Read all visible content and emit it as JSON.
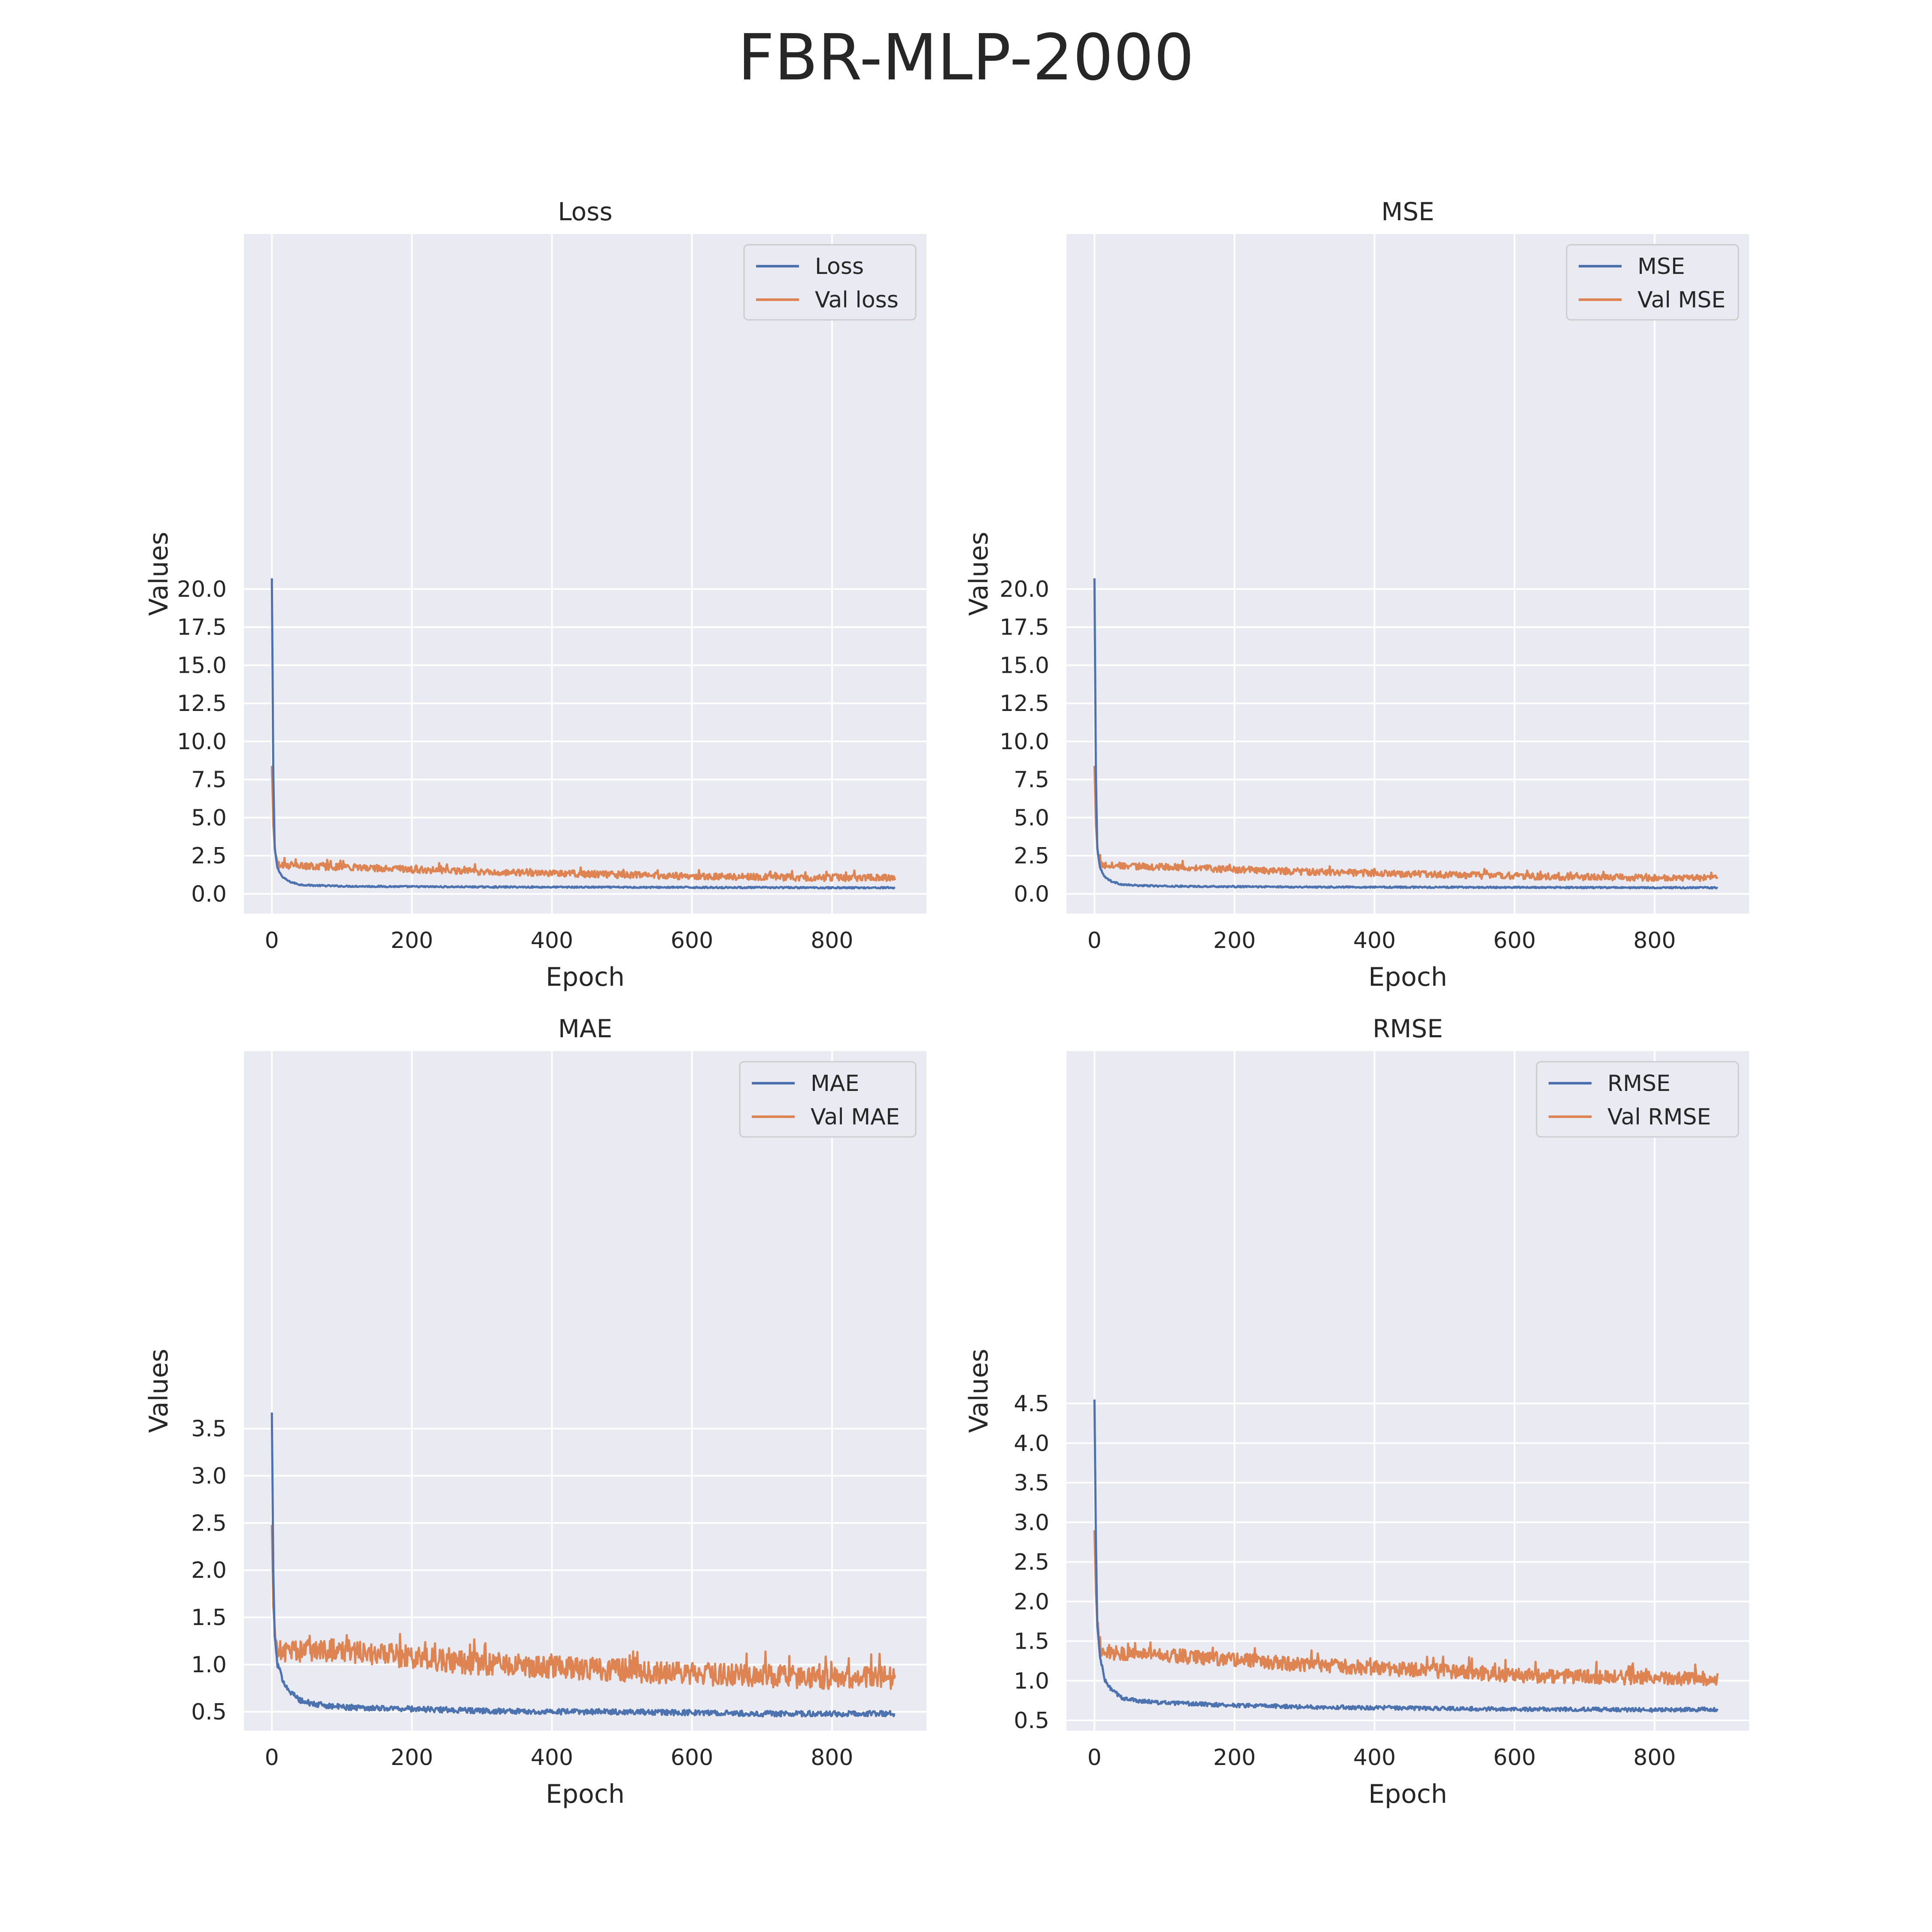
{
  "figure": {
    "title": "FBR-MLP-2000",
    "colors": {
      "train": "#4c72b0",
      "val": "#dd8452",
      "panel_bg": "#eaeaf2",
      "grid": "#ffffff",
      "text": "#262626"
    }
  },
  "chart_data": [
    {
      "type": "line",
      "title": "Loss",
      "xlabel": "Epoch",
      "ylabel": "Values",
      "xlim": [
        -40,
        935
      ],
      "ylim": [
        -1.3,
        43.3
      ],
      "xticks": [
        0,
        200,
        400,
        600,
        800
      ],
      "yticks": [
        "0.0",
        "2.5",
        "5.0",
        "7.5",
        "10.0",
        "12.5",
        "15.0",
        "17.5",
        "20.0"
      ],
      "grid": true,
      "legend_position": "top-right",
      "epochs": 890,
      "series": [
        {
          "name": "Loss",
          "color": "#4c72b0",
          "x": [
            0,
            2,
            4,
            8,
            15,
            25,
            40,
            60,
            100,
            200,
            300,
            400,
            500,
            600,
            700,
            800,
            890
          ],
          "y": [
            20.7,
            8.0,
            3.0,
            1.7,
            1.1,
            0.8,
            0.6,
            0.55,
            0.5,
            0.47,
            0.45,
            0.44,
            0.43,
            0.42,
            0.41,
            0.4,
            0.4
          ],
          "noise": 0.05
        },
        {
          "name": "Val loss",
          "color": "#dd8452",
          "x": [
            0,
            2,
            5,
            10,
            30,
            100,
            200,
            300,
            400,
            500,
            600,
            700,
            800,
            890
          ],
          "y": [
            8.4,
            4.5,
            2.6,
            1.9,
            1.85,
            1.75,
            1.6,
            1.45,
            1.35,
            1.25,
            1.15,
            1.1,
            1.05,
            1.05
          ],
          "noise": 0.22
        }
      ]
    },
    {
      "type": "line",
      "title": "MSE",
      "xlabel": "Epoch",
      "ylabel": "Values",
      "xlim": [
        -40,
        935
      ],
      "ylim": [
        -1.3,
        43.3
      ],
      "xticks": [
        0,
        200,
        400,
        600,
        800
      ],
      "yticks": [
        "0.0",
        "2.5",
        "5.0",
        "7.5",
        "10.0",
        "12.5",
        "15.0",
        "17.5",
        "20.0"
      ],
      "grid": true,
      "legend_position": "top-right",
      "epochs": 890,
      "series": [
        {
          "name": "MSE",
          "color": "#4c72b0",
          "x": [
            0,
            2,
            4,
            8,
            15,
            25,
            40,
            60,
            100,
            200,
            300,
            400,
            500,
            600,
            700,
            800,
            890
          ],
          "y": [
            20.7,
            8.0,
            3.0,
            1.7,
            1.1,
            0.8,
            0.6,
            0.55,
            0.5,
            0.47,
            0.45,
            0.44,
            0.43,
            0.42,
            0.41,
            0.4,
            0.4
          ],
          "noise": 0.05
        },
        {
          "name": "Val MSE",
          "color": "#dd8452",
          "x": [
            0,
            2,
            5,
            10,
            30,
            100,
            200,
            300,
            400,
            500,
            600,
            700,
            800,
            890
          ],
          "y": [
            8.4,
            4.5,
            2.6,
            1.9,
            1.85,
            1.75,
            1.6,
            1.45,
            1.35,
            1.25,
            1.15,
            1.1,
            1.05,
            1.05
          ],
          "noise": 0.22
        }
      ]
    },
    {
      "type": "line",
      "title": "MAE",
      "xlabel": "Epoch",
      "ylabel": "Values",
      "xlim": [
        -40,
        935
      ],
      "ylim": [
        0.3,
        7.5
      ],
      "xticks": [
        0,
        200,
        400,
        600,
        800
      ],
      "yticks": [
        "0.5",
        "1.0",
        "1.5",
        "2.0",
        "2.5",
        "3.0",
        "3.5"
      ],
      "grid": true,
      "legend_position": "top-right",
      "epochs": 890,
      "series": [
        {
          "name": "MAE",
          "color": "#4c72b0",
          "x": [
            0,
            2,
            4,
            8,
            15,
            25,
            40,
            60,
            100,
            200,
            300,
            400,
            500,
            600,
            700,
            800,
            890
          ],
          "y": [
            3.67,
            2.0,
            1.3,
            1.0,
            0.85,
            0.72,
            0.62,
            0.58,
            0.55,
            0.53,
            0.51,
            0.5,
            0.5,
            0.49,
            0.48,
            0.48,
            0.48
          ],
          "noise": 0.03
        },
        {
          "name": "Val MAE",
          "color": "#dd8452",
          "x": [
            0,
            2,
            5,
            10,
            30,
            100,
            200,
            300,
            400,
            500,
            600,
            700,
            800,
            890
          ],
          "y": [
            2.48,
            1.6,
            1.25,
            1.15,
            1.15,
            1.15,
            1.08,
            1.0,
            0.97,
            0.94,
            0.9,
            0.88,
            0.86,
            0.86
          ],
          "noise": 0.12
        }
      ]
    },
    {
      "type": "line",
      "title": "RMSE",
      "xlabel": "Epoch",
      "ylabel": "Values",
      "xlim": [
        -40,
        935
      ],
      "ylim": [
        0.37,
        8.95
      ],
      "xticks": [
        0,
        200,
        400,
        600,
        800
      ],
      "yticks": [
        "0.5",
        "1.0",
        "1.5",
        "2.0",
        "2.5",
        "3.0",
        "3.5",
        "4.0",
        "4.5"
      ],
      "grid": true,
      "legend_position": "top-right",
      "epochs": 890,
      "series": [
        {
          "name": "RMSE",
          "color": "#4c72b0",
          "x": [
            0,
            2,
            4,
            8,
            15,
            25,
            40,
            60,
            100,
            200,
            300,
            400,
            500,
            600,
            700,
            800,
            890
          ],
          "y": [
            4.55,
            2.8,
            1.7,
            1.3,
            1.0,
            0.88,
            0.78,
            0.75,
            0.72,
            0.69,
            0.67,
            0.66,
            0.65,
            0.64,
            0.64,
            0.63,
            0.64
          ],
          "noise": 0.025
        },
        {
          "name": "Val RMSE",
          "color": "#dd8452",
          "x": [
            0,
            2,
            5,
            10,
            30,
            100,
            200,
            300,
            400,
            500,
            600,
            700,
            800,
            890
          ],
          "y": [
            2.9,
            2.1,
            1.6,
            1.38,
            1.35,
            1.32,
            1.27,
            1.2,
            1.16,
            1.12,
            1.07,
            1.05,
            1.03,
            1.03
          ],
          "noise": 0.09
        }
      ]
    }
  ]
}
